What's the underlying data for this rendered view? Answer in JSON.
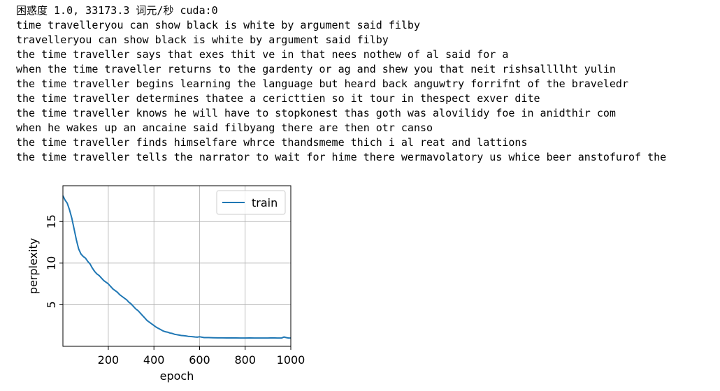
{
  "output_lines": [
    "困惑度 1.0, 33173.3 词元/秒 cuda:0",
    "time travelleryou can show black is white by argument said filby",
    "travelleryou can show black is white by argument said filby",
    "the time traveller says that exes thit ve in that nees nothew of al said for a",
    "when the time traveller returns to the gardenty or ag and shew you that neit rishsallllht yulin",
    "the time traveller begins learning the language but heard back anguwtry forrifnt of the braveledr",
    "the time traveller determines thatee a cericttien so it tour in thespect exver dite",
    "the time traveller knows he will have to stopkonest thas goth was alovilidy foe in anidthir com",
    "when he wakes up an ancaine said filbyang there are then otr canso",
    "the time traveller finds himselfare whrce thandsmeme thich i al reat and lattions",
    "the time traveller tells the narrator to wait for hime there wermavolatory us whice beer anstofurof the"
  ],
  "chart_data": {
    "type": "line",
    "xlabel": "epoch",
    "ylabel": "perplexity",
    "xlim": [
      1,
      1000
    ],
    "ylim": [
      0,
      19.3
    ],
    "xticks": [
      200,
      400,
      600,
      800,
      1000
    ],
    "yticks": [
      5,
      10,
      15
    ],
    "grid": true,
    "legend_position": "top-right",
    "series": [
      {
        "name": "train",
        "color": "#1f77b4",
        "x": [
          1,
          10,
          20,
          30,
          40,
          50,
          60,
          70,
          80,
          90,
          100,
          110,
          120,
          130,
          140,
          150,
          160,
          170,
          180,
          190,
          200,
          210,
          220,
          230,
          240,
          250,
          260,
          270,
          280,
          290,
          300,
          310,
          320,
          330,
          340,
          350,
          360,
          370,
          380,
          390,
          400,
          410,
          420,
          430,
          440,
          450,
          460,
          470,
          480,
          490,
          500,
          510,
          520,
          530,
          540,
          550,
          560,
          570,
          580,
          590,
          600,
          620,
          640,
          660,
          680,
          700,
          720,
          740,
          760,
          780,
          800,
          820,
          840,
          860,
          880,
          900,
          920,
          940,
          960,
          970,
          980,
          990,
          1000
        ],
        "values": [
          18.1,
          17.6,
          17.2,
          16.4,
          15.4,
          14.1,
          12.8,
          11.7,
          11.1,
          10.8,
          10.6,
          10.2,
          9.9,
          9.4,
          9.0,
          8.7,
          8.5,
          8.2,
          7.9,
          7.7,
          7.5,
          7.2,
          6.9,
          6.7,
          6.5,
          6.2,
          6.0,
          5.8,
          5.6,
          5.3,
          5.1,
          4.8,
          4.5,
          4.3,
          4.0,
          3.7,
          3.4,
          3.1,
          2.9,
          2.7,
          2.5,
          2.3,
          2.15,
          2.0,
          1.85,
          1.75,
          1.7,
          1.6,
          1.55,
          1.45,
          1.4,
          1.35,
          1.3,
          1.28,
          1.25,
          1.2,
          1.18,
          1.15,
          1.12,
          1.1,
          1.15,
          1.05,
          1.05,
          1.03,
          1.02,
          1.02,
          1.01,
          1.02,
          1.01,
          1.0,
          1.0,
          1.01,
          1.0,
          1.0,
          1.0,
          1.0,
          1.02,
          1.0,
          1.0,
          1.12,
          1.05,
          1.0,
          1.0
        ]
      }
    ]
  }
}
